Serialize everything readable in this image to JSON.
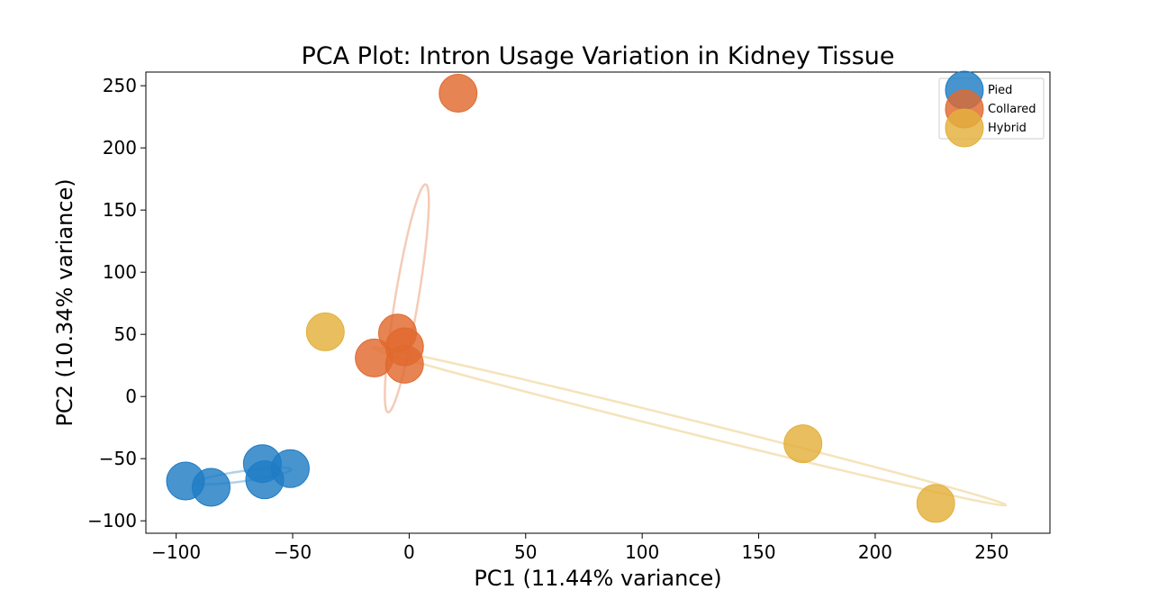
{
  "chart_data": {
    "type": "scatter",
    "title": "PCA Plot: Intron Usage Variation in Kidney Tissue",
    "xlabel": "PC1 (11.44% variance)",
    "ylabel": "PC2 (10.34% variance)",
    "xlim": [
      -113,
      275
    ],
    "ylim": [
      -110,
      261
    ],
    "xticks": [
      -100,
      -50,
      0,
      50,
      100,
      150,
      200,
      250
    ],
    "xtick_labels": [
      "−100",
      "−50",
      "0",
      "50",
      "100",
      "150",
      "200",
      "250"
    ],
    "yticks": [
      -100,
      -50,
      0,
      50,
      100,
      150,
      200,
      250
    ],
    "ytick_labels": [
      "−100",
      "−50",
      "0",
      "50",
      "100",
      "150",
      "200",
      "250"
    ],
    "grid": false,
    "legend_position": "top-right",
    "series": [
      {
        "name": "Pied",
        "color": "#1f7cc4",
        "points": [
          [
            -96,
            -68
          ],
          [
            -85,
            -73
          ],
          [
            -63,
            -54
          ],
          [
            -62,
            -67
          ],
          [
            -51,
            -58
          ]
        ],
        "ellipse": {
          "cx": -71,
          "cy": -64,
          "angle_deg": 15,
          "semi_major": 21,
          "semi_minor": 4
        }
      },
      {
        "name": "Collared",
        "color": "#e1692e",
        "points": [
          [
            21,
            244
          ],
          [
            -15,
            31
          ],
          [
            -5,
            51
          ],
          [
            -2,
            40
          ],
          [
            -2,
            26
          ]
        ],
        "ellipse": {
          "cx": -1,
          "cy": 79,
          "angle_deg": 85,
          "semi_major": 92,
          "semi_minor": 5
        }
      },
      {
        "name": "Hybrid",
        "color": "#e3b03c",
        "points": [
          [
            -36,
            52
          ],
          [
            169,
            -38
          ],
          [
            226,
            -86
          ]
        ],
        "ellipse": {
          "cx": 120,
          "cy": -24,
          "angle_deg": -25,
          "semi_major": 150,
          "semi_minor": 5
        }
      }
    ]
  }
}
